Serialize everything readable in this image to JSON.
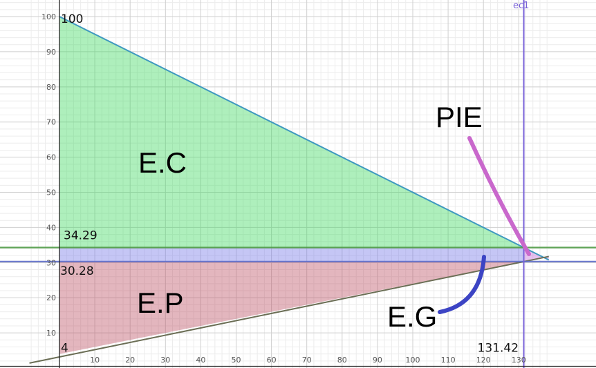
{
  "chart_data": {
    "type": "area",
    "xlim": [
      -8.5,
      138.5
    ],
    "ylim": [
      0.5,
      104.2
    ],
    "x_ticks": [
      10,
      20,
      30,
      40,
      50,
      60,
      70,
      80,
      90,
      100,
      110,
      120,
      130
    ],
    "y_ticks": [
      10,
      20,
      30,
      40,
      50,
      60,
      70,
      80,
      90,
      100
    ],
    "grid": true,
    "lines": [
      {
        "name": "demand",
        "points": [
          [
            0,
            100
          ],
          [
            131.42,
            34.29
          ],
          [
            138.5,
            30.75
          ]
        ],
        "color": "#3f99bf"
      },
      {
        "name": "supply",
        "points": [
          [
            -8.5,
            1.4
          ],
          [
            131.42,
            30.28
          ],
          [
            138.5,
            31.75
          ]
        ],
        "color": "#6b6e55"
      },
      {
        "name": "price",
        "y": 34.29,
        "color": "#4e9a44"
      },
      {
        "name": "lower price",
        "y": 30.28,
        "color": "#5e6ec9"
      },
      {
        "name": "ec1",
        "x": 131.42,
        "color": "#7a63d8"
      }
    ],
    "regions": [
      {
        "label": "E.C",
        "points": [
          [
            0,
            100
          ],
          [
            0,
            34.29
          ],
          [
            131.42,
            34.29
          ]
        ],
        "fill": "#3fd860"
      },
      {
        "label": "",
        "points": [
          [
            0,
            34.29
          ],
          [
            131.42,
            34.29
          ],
          [
            131.42,
            30.28
          ],
          [
            0,
            30.28
          ]
        ],
        "fill": "#7577e6"
      },
      {
        "label": "E.P",
        "points": [
          [
            0,
            30.28
          ],
          [
            131.42,
            30.28
          ],
          [
            0,
            4
          ]
        ],
        "fill": "#bd5063"
      },
      {
        "label": "",
        "points": [
          [
            131.42,
            34.29
          ],
          [
            138.5,
            30.75
          ],
          [
            138.5,
            31.75
          ],
          [
            131.42,
            30.28
          ]
        ],
        "fill": "#c26ed9"
      }
    ],
    "value_labels": [
      {
        "text": "100",
        "x": 0,
        "y": 100
      },
      {
        "text": "34.29",
        "x": 0,
        "y": 34.29
      },
      {
        "text": "30.28",
        "x": 0,
        "y": 30.28
      },
      {
        "text": "4",
        "x": 0,
        "y": 4
      },
      {
        "text": "131.42",
        "x": 131.42,
        "y": 4
      }
    ],
    "annotations": [
      {
        "text": "E.C"
      },
      {
        "text": "E.P"
      },
      {
        "text": "PIE",
        "color": "#c968cc"
      },
      {
        "text": "E.G",
        "color": "#3c44c4"
      },
      {
        "text": "ec1",
        "color": "#7a63d8"
      }
    ]
  }
}
